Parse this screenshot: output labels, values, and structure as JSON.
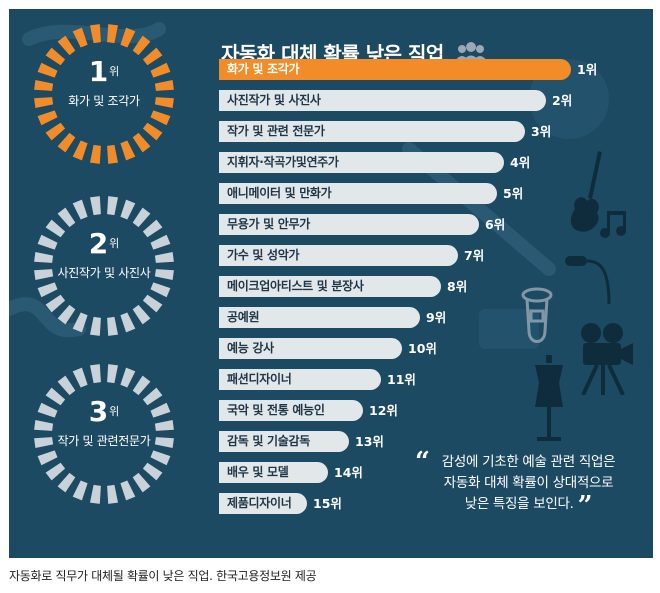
{
  "infographic": {
    "title": "자동화 대체 확률 낮은 직업",
    "title_icon": "people-icon",
    "colors": {
      "background": "#1d4a63",
      "accent": "#f28c28",
      "bar": "#e2e7ea",
      "ring_gray": "#c9d2d8"
    },
    "ranking": [
      {
        "job": "화가 및 조각가",
        "rank": "1위",
        "bar_fraction": 1.0
      },
      {
        "job": "사진작가 및 사진사",
        "rank": "2위",
        "bar_fraction": 0.93
      },
      {
        "job": "작가 및 관련 전문가",
        "rank": "3위",
        "bar_fraction": 0.87
      },
      {
        "job": "지휘자·작곡가및연주가",
        "rank": "4위",
        "bar_fraction": 0.81
      },
      {
        "job": "애니메이터 및 만화가",
        "rank": "5위",
        "bar_fraction": 0.79
      },
      {
        "job": "무용가 및 안무가",
        "rank": "6위",
        "bar_fraction": 0.74
      },
      {
        "job": "가수 및 성악가",
        "rank": "7위",
        "bar_fraction": 0.68
      },
      {
        "job": "메이크업아티스트 및 분장사",
        "rank": "8위",
        "bar_fraction": 0.63
      },
      {
        "job": "공예원",
        "rank": "9위",
        "bar_fraction": 0.57
      },
      {
        "job": "예능 강사",
        "rank": "10위",
        "bar_fraction": 0.52
      },
      {
        "job": "패션디자이너",
        "rank": "11위",
        "bar_fraction": 0.46
      },
      {
        "job": "국악 및 전통 예능인",
        "rank": "12위",
        "bar_fraction": 0.41
      },
      {
        "job": "감독 및 기술감독",
        "rank": "13위",
        "bar_fraction": 0.37
      },
      {
        "job": "배우 및 모델",
        "rank": "14위",
        "bar_fraction": 0.31
      },
      {
        "job": "제품디자이너",
        "rank": "15위",
        "bar_fraction": 0.25
      }
    ],
    "top3": [
      {
        "rank_number": "1",
        "rank_suffix": "위",
        "job": "화가 및 조각가",
        "highlight": true
      },
      {
        "rank_number": "2",
        "rank_suffix": "위",
        "job": "사진작가 및 사진사",
        "highlight": false
      },
      {
        "rank_number": "3",
        "rank_suffix": "위",
        "job": "작가 및 관련전문가",
        "highlight": false
      }
    ],
    "quote": {
      "lines": [
        "감성에 기초한 예술 관련 직업은",
        "자동화 대체 확률이 상대적으로",
        "낮은 특징을 보인다."
      ]
    },
    "decorative_icons": [
      "guitar-icon",
      "music-notes-icon",
      "microphone-icon",
      "tuba-icon",
      "film-camera-icon",
      "mannequin-icon"
    ]
  },
  "caption": "자동화로 직무가 대체될 확률이 낮은 직업. 한국고용정보원 제공"
}
